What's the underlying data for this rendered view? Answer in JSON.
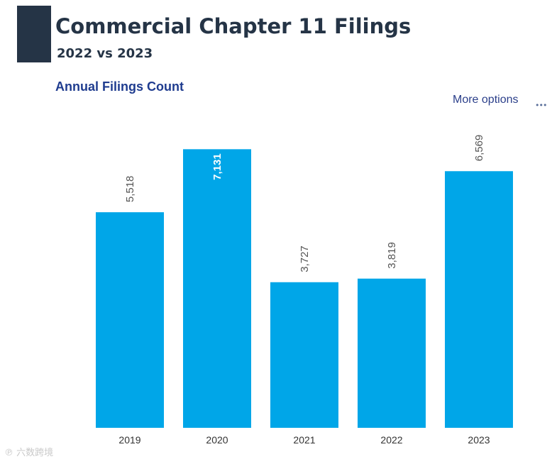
{
  "header": {
    "title": "Commercial Chapter 11 Filings",
    "subtitle": "2022 vs 2023",
    "accent_color": "#253446"
  },
  "visual": {
    "more_options_label": "More options",
    "ellipsis_icon": "ellipsis-icon"
  },
  "watermark": {
    "text": "℗ 六数跨境"
  },
  "chart_data": {
    "type": "bar",
    "title": "Annual Filings Count",
    "categories": [
      "2019",
      "2020",
      "2021",
      "2022",
      "2023"
    ],
    "values": [
      5518,
      7131,
      3727,
      3819,
      6569
    ],
    "value_labels": [
      "5,518",
      "7,131",
      "3,727",
      "3,819",
      "6,569"
    ],
    "ylim": [
      0,
      7500
    ],
    "bar_color": "#00a6e8",
    "xlabel": "",
    "ylabel": "",
    "grid": false,
    "legend": "none"
  }
}
